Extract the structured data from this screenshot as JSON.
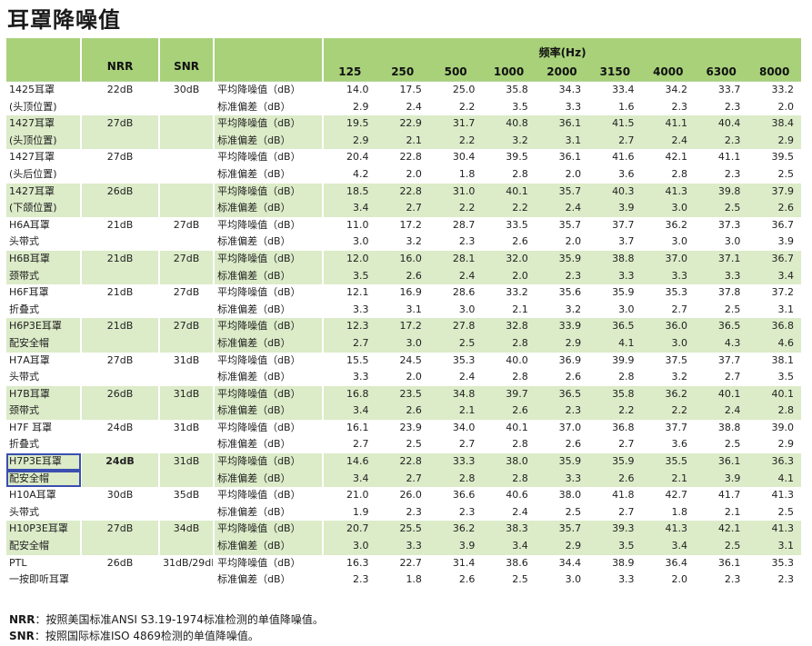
{
  "title": "耳罩降噪值",
  "header": {
    "nrr": "NRR",
    "snr": "SNR",
    "freq_label": "频率(Hz)",
    "freqs": [
      "125",
      "250",
      "500",
      "1000",
      "2000",
      "3150",
      "4000",
      "6300",
      "8000"
    ]
  },
  "rows": [
    {
      "model": [
        "1425耳罩",
        "(头顶位置)"
      ],
      "nrr": "22dB",
      "snr": "30dB",
      "mean_label": "平均降噪值（dB）",
      "sd_label": "标准偏差（dB）",
      "mean": [
        "14.0",
        "17.5",
        "25.0",
        "35.8",
        "34.3",
        "33.4",
        "34.2",
        "33.7",
        "33.2"
      ],
      "sd": [
        "2.9",
        "2.4",
        "2.2",
        "3.5",
        "3.3",
        "1.6",
        "2.3",
        "2.3",
        "2.0"
      ]
    },
    {
      "model": [
        "1427耳罩",
        "(头顶位置)"
      ],
      "nrr": "27dB",
      "snr": "",
      "mean_label": "平均降噪值（dB）",
      "sd_label": "标准偏差（dB）",
      "mean": [
        "19.5",
        "22.9",
        "31.7",
        "40.8",
        "36.1",
        "41.5",
        "41.1",
        "40.4",
        "38.4"
      ],
      "sd": [
        "2.9",
        "2.1",
        "2.2",
        "3.2",
        "3.1",
        "2.7",
        "2.4",
        "2.3",
        "2.9"
      ]
    },
    {
      "model": [
        "1427耳罩",
        "(头后位置)"
      ],
      "nrr": "27dB",
      "snr": "",
      "mean_label": "平均降噪值（dB）",
      "sd_label": "标准偏差（dB）",
      "mean": [
        "20.4",
        "22.8",
        "30.4",
        "39.5",
        "36.1",
        "41.6",
        "42.1",
        "41.1",
        "39.5"
      ],
      "sd": [
        "4.2",
        "2.0",
        "1.8",
        "2.8",
        "2.0",
        "3.6",
        "2.8",
        "2.3",
        "2.5"
      ]
    },
    {
      "model": [
        "1427耳罩",
        "(下颌位置)"
      ],
      "nrr": "26dB",
      "snr": "",
      "mean_label": "平均降噪值（dB）",
      "sd_label": "标准偏差（dB）",
      "mean": [
        "18.5",
        "22.8",
        "31.0",
        "40.1",
        "35.7",
        "40.3",
        "41.3",
        "39.8",
        "37.9"
      ],
      "sd": [
        "3.4",
        "2.7",
        "2.2",
        "2.2",
        "2.4",
        "3.9",
        "3.0",
        "2.5",
        "2.6"
      ]
    },
    {
      "model": [
        "H6A耳罩",
        "头带式"
      ],
      "nrr": "21dB",
      "snr": "27dB",
      "mean_label": "平均降噪值（dB）",
      "sd_label": "标准偏差（dB）",
      "mean": [
        "11.0",
        "17.2",
        "28.7",
        "33.5",
        "35.7",
        "37.7",
        "36.2",
        "37.3",
        "36.7"
      ],
      "sd": [
        "3.0",
        "3.2",
        "2.3",
        "2.6",
        "2.0",
        "3.7",
        "3.0",
        "3.0",
        "3.9"
      ]
    },
    {
      "model": [
        "H6B耳罩",
        "颈带式"
      ],
      "nrr": "21dB",
      "snr": "27dB",
      "mean_label": "平均降噪值（dB）",
      "sd_label": "标准偏差（dB）",
      "mean": [
        "12.0",
        "16.0",
        "28.1",
        "32.0",
        "35.9",
        "38.8",
        "37.0",
        "37.1",
        "36.7"
      ],
      "sd": [
        "3.5",
        "2.6",
        "2.4",
        "2.0",
        "2.3",
        "3.3",
        "3.3",
        "3.3",
        "3.4"
      ]
    },
    {
      "model": [
        "H6F耳罩",
        "折叠式"
      ],
      "nrr": "21dB",
      "snr": "27dB",
      "mean_label": "平均降噪值（dB）",
      "sd_label": "标准偏差（dB）",
      "mean": [
        "12.1",
        "16.9",
        "28.6",
        "33.2",
        "35.6",
        "35.9",
        "35.3",
        "37.8",
        "37.2"
      ],
      "sd": [
        "3.3",
        "3.1",
        "3.0",
        "2.1",
        "3.2",
        "3.0",
        "2.7",
        "2.5",
        "3.1"
      ]
    },
    {
      "model": [
        "H6P3E耳罩",
        "配安全帽"
      ],
      "nrr": "21dB",
      "snr": "27dB",
      "mean_label": "平均降噪值（dB）",
      "sd_label": "标准偏差（dB）",
      "mean": [
        "12.3",
        "17.2",
        "27.8",
        "32.8",
        "33.9",
        "36.5",
        "36.0",
        "36.5",
        "36.8"
      ],
      "sd": [
        "2.7",
        "3.0",
        "2.5",
        "2.8",
        "2.9",
        "4.1",
        "3.0",
        "4.3",
        "4.6"
      ]
    },
    {
      "model": [
        "H7A耳罩",
        "头带式"
      ],
      "nrr": "27dB",
      "snr": "31dB",
      "mean_label": "平均降噪值（dB）",
      "sd_label": "标准偏差（dB）",
      "mean": [
        "15.5",
        "24.5",
        "35.3",
        "40.0",
        "36.9",
        "39.9",
        "37.5",
        "37.7",
        "38.1"
      ],
      "sd": [
        "3.3",
        "2.0",
        "2.4",
        "2.8",
        "2.6",
        "2.8",
        "3.2",
        "2.7",
        "3.5"
      ]
    },
    {
      "model": [
        "H7B耳罩",
        "颈带式"
      ],
      "nrr": "26dB",
      "snr": "31dB",
      "mean_label": "平均降噪值（dB）",
      "sd_label": "标准偏差（dB）",
      "mean": [
        "16.8",
        "23.5",
        "34.8",
        "39.7",
        "36.5",
        "35.8",
        "36.2",
        "40.1",
        "40.1"
      ],
      "sd": [
        "3.4",
        "2.6",
        "2.1",
        "2.6",
        "2.3",
        "2.2",
        "2.2",
        "2.4",
        "2.8"
      ]
    },
    {
      "model": [
        "H7F 耳罩",
        "折叠式"
      ],
      "nrr": "24dB",
      "snr": "31dB",
      "mean_label": "平均降噪值（dB）",
      "sd_label": "标准偏差（dB）",
      "mean": [
        "16.1",
        "23.9",
        "34.0",
        "40.1",
        "37.0",
        "36.8",
        "37.7",
        "38.8",
        "39.0"
      ],
      "sd": [
        "2.7",
        "2.5",
        "2.7",
        "2.8",
        "2.6",
        "2.7",
        "3.6",
        "2.5",
        "2.9"
      ]
    },
    {
      "model": [
        "H7P3E耳罩",
        "配安全帽"
      ],
      "nrr": "24dB",
      "snr": "31dB",
      "mean_label": "平均降噪值（dB）",
      "sd_label": "标准偏差（dB）",
      "mean": [
        "14.6",
        "22.8",
        "33.3",
        "38.0",
        "35.9",
        "35.9",
        "35.5",
        "36.1",
        "36.3"
      ],
      "sd": [
        "3.4",
        "2.7",
        "2.8",
        "2.8",
        "3.3",
        "2.6",
        "2.1",
        "3.9",
        "4.1"
      ]
    },
    {
      "model": [
        "H10A耳罩",
        "头带式"
      ],
      "nrr": "30dB",
      "snr": "35dB",
      "mean_label": "平均降噪值（dB）",
      "sd_label": "标准偏差（dB）",
      "mean": [
        "21.0",
        "26.0",
        "36.6",
        "40.6",
        "38.0",
        "41.8",
        "42.7",
        "41.7",
        "41.3"
      ],
      "sd": [
        "1.9",
        "2.3",
        "2.3",
        "2.4",
        "2.5",
        "2.7",
        "1.8",
        "2.1",
        "2.5"
      ]
    },
    {
      "model": [
        "H10P3E耳罩",
        "配安全帽"
      ],
      "nrr": "27dB",
      "snr": "34dB",
      "mean_label": "平均降噪值（dB）",
      "sd_label": "标准偏差（dB）",
      "mean": [
        "20.7",
        "25.5",
        "36.2",
        "38.3",
        "35.7",
        "39.3",
        "41.3",
        "42.1",
        "41.3"
      ],
      "sd": [
        "3.0",
        "3.3",
        "3.9",
        "3.4",
        "2.9",
        "3.5",
        "3.4",
        "2.5",
        "3.1"
      ]
    },
    {
      "model": [
        "PTL",
        "一按即听耳罩"
      ],
      "nrr": "26dB",
      "snr": "31dB/29dB",
      "mean_label": "平均降噪值（dB）",
      "sd_label": "标准偏差（dB）",
      "mean": [
        "16.3",
        "22.7",
        "31.4",
        "38.6",
        "34.4",
        "38.9",
        "36.4",
        "36.1",
        "35.3"
      ],
      "sd": [
        "2.3",
        "1.8",
        "2.6",
        "2.5",
        "3.0",
        "3.3",
        "2.0",
        "2.3",
        "2.3"
      ]
    }
  ],
  "notes": [
    {
      "key": "NRR",
      "text": "：按照美国标准ANSI S3.19-1974标准检测的单值降噪值。"
    },
    {
      "key": "SNR",
      "text": "：按照国际标准ISO 4869检测的单值降噪值。"
    }
  ],
  "colors": {
    "header": "#a8d17a",
    "band": "#dcebc8",
    "highlight": "#3a4fb0"
  }
}
